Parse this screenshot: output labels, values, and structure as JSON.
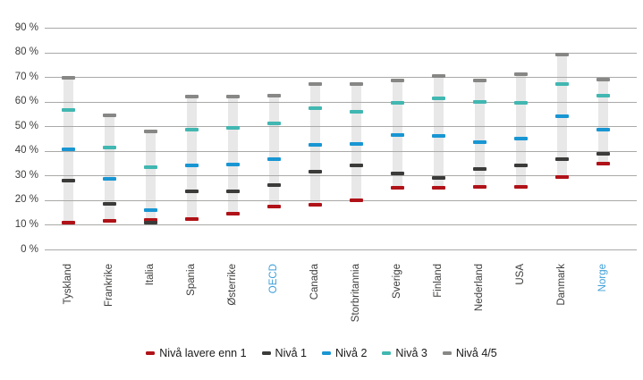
{
  "colors": {
    "red": "#b01218",
    "dark": "#3b3b3a",
    "blue": "#1896d3",
    "teal": "#41b7b1",
    "gray": "#878786",
    "band": "#e8e8e8",
    "gridline": "#a9a9a8",
    "axis_text": "#3c3c3b",
    "highlight_label": "#3f9fd8",
    "legend_text": "#1a1a1a"
  },
  "chart_data": {
    "type": "scatter",
    "subtype": "floating-dash-markers-on-column-bands",
    "title": "",
    "xlabel": "",
    "ylabel": "",
    "ylim": [
      0,
      90
    ],
    "ytick_step": 10,
    "ytick_suffix": " %",
    "ytick_labels": [
      "0 %",
      "10 %",
      "20 %",
      "30 %",
      "40 %",
      "50 %",
      "60 %",
      "70 %",
      "80 %",
      "90 %"
    ],
    "grid": true,
    "legend_position": "bottom",
    "categories": [
      "Tyskland",
      "Frankrike",
      "Italia",
      "Spania",
      "Østerrike",
      "OECD",
      "Canada",
      "Storbritannia",
      "Sverige",
      "Finland",
      "Nederland",
      "USA",
      "Danmark",
      "Norge"
    ],
    "highlighted_categories": [
      "OECD",
      "Norge"
    ],
    "series": [
      {
        "name": "Nivå lavere enn 1",
        "color_key": "red",
        "values": [
          11,
          11.5,
          12,
          12.5,
          14.5,
          17.5,
          18,
          20,
          25,
          25,
          25.5,
          25.5,
          29.5,
          35
        ]
      },
      {
        "name": "Nivå 1",
        "color_key": "dark",
        "values": [
          28,
          18.5,
          11,
          23.5,
          23.5,
          26,
          31.5,
          34,
          31,
          29,
          32.5,
          34,
          36.5,
          39
        ]
      },
      {
        "name": "Nivå 2",
        "color_key": "blue",
        "values": [
          40.5,
          28.5,
          16,
          34,
          34.5,
          36.5,
          42.5,
          43,
          46.5,
          46,
          43.5,
          45,
          54,
          48.5
        ]
      },
      {
        "name": "Nivå 3",
        "color_key": "teal",
        "values": [
          56.5,
          41.5,
          33.5,
          48.5,
          49.5,
          51,
          57.5,
          56,
          59.5,
          61.5,
          60,
          59.5,
          67,
          62.5
        ]
      },
      {
        "name": "Nivå 4/5",
        "color_key": "gray",
        "values": [
          69.5,
          54.5,
          48,
          62,
          62,
          62.5,
          67,
          67,
          68.5,
          70.5,
          68.5,
          71,
          79,
          69
        ]
      }
    ]
  }
}
